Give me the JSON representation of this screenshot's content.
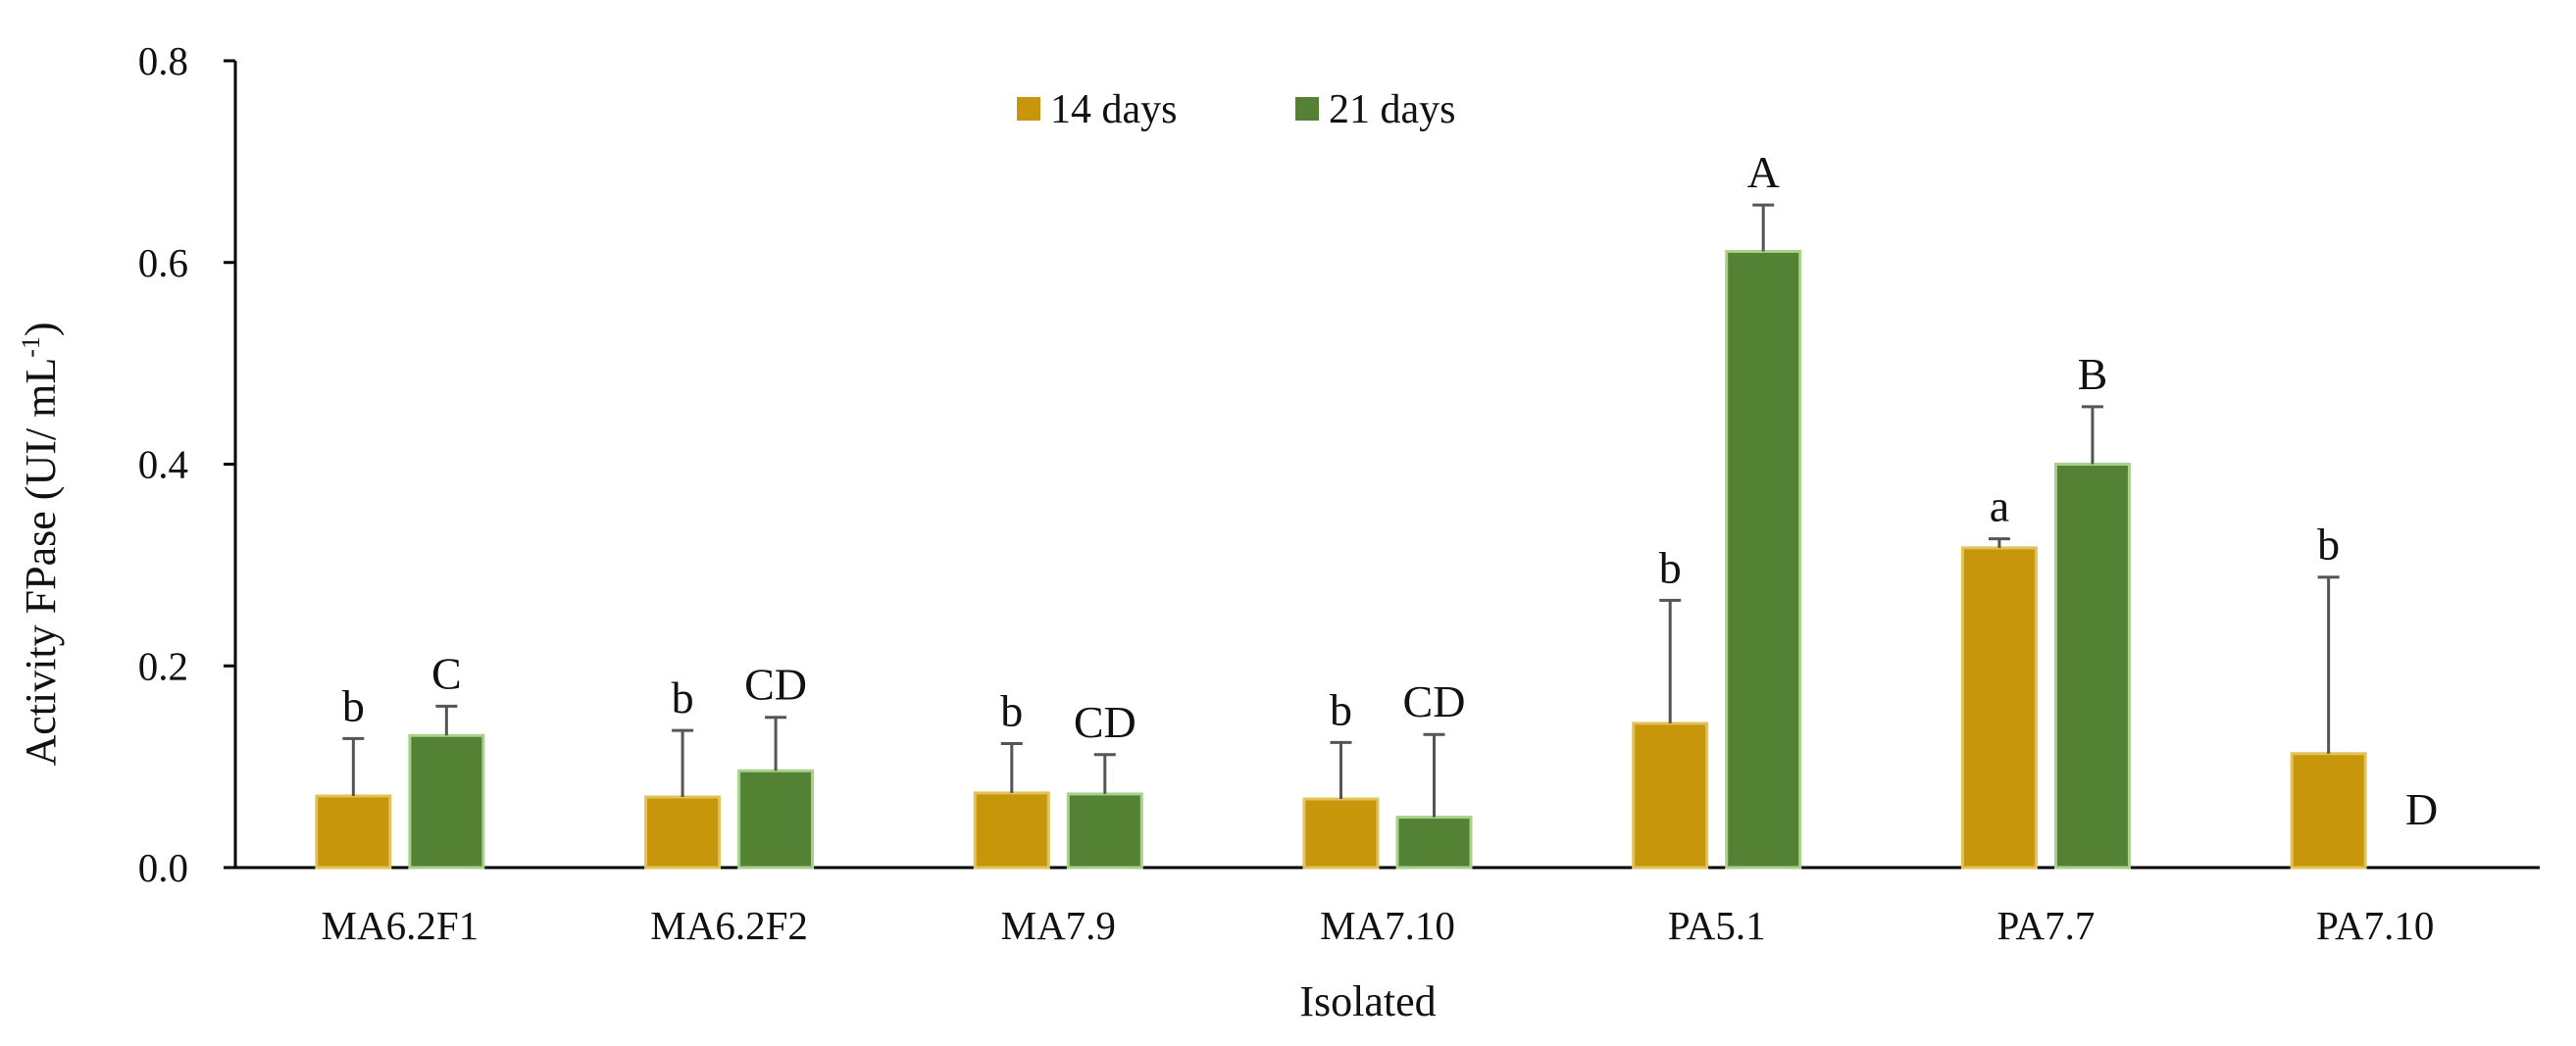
{
  "chart_data": {
    "type": "bar",
    "title": "",
    "xlabel": "Isolated",
    "ylabel": {
      "main": "Activity  FPase (UI/ mL",
      "sup": "-1",
      "close": ")"
    },
    "ylim": [
      0,
      0.8
    ],
    "yticks": [
      0,
      0.2,
      0.4,
      0.6,
      0.8
    ],
    "ytick_labels": [
      "0.0",
      "0.2",
      "0.4",
      "0.6",
      "0.8"
    ],
    "grid": false,
    "legend_position": "top-center",
    "categories": [
      "MA6.2F1",
      "MA6.2F2",
      "MA7.9",
      "MA7.10",
      "PA5.1",
      "PA7.7",
      "PA7.10"
    ],
    "series": [
      {
        "name": "14 days",
        "color": "#c8960a",
        "edge_color": "#e2c25a",
        "values": [
          0.071,
          0.07,
          0.074,
          0.068,
          0.143,
          0.317,
          0.113
        ],
        "error": [
          0.057,
          0.066,
          0.049,
          0.056,
          0.122,
          0.009,
          0.175
        ],
        "labels": [
          "b",
          "b",
          "b",
          "b",
          "b",
          "a",
          "b"
        ]
      },
      {
        "name": "21 days",
        "color": "#548235",
        "edge_color": "#a9d18e",
        "values": [
          0.131,
          0.096,
          0.073,
          0.05,
          0.611,
          0.4,
          0.0
        ],
        "error": [
          0.029,
          0.053,
          0.039,
          0.082,
          0.046,
          0.057,
          0.0
        ],
        "labels": [
          "C",
          "CD",
          "CD",
          "CD",
          "A",
          "B",
          "D"
        ]
      }
    ]
  }
}
